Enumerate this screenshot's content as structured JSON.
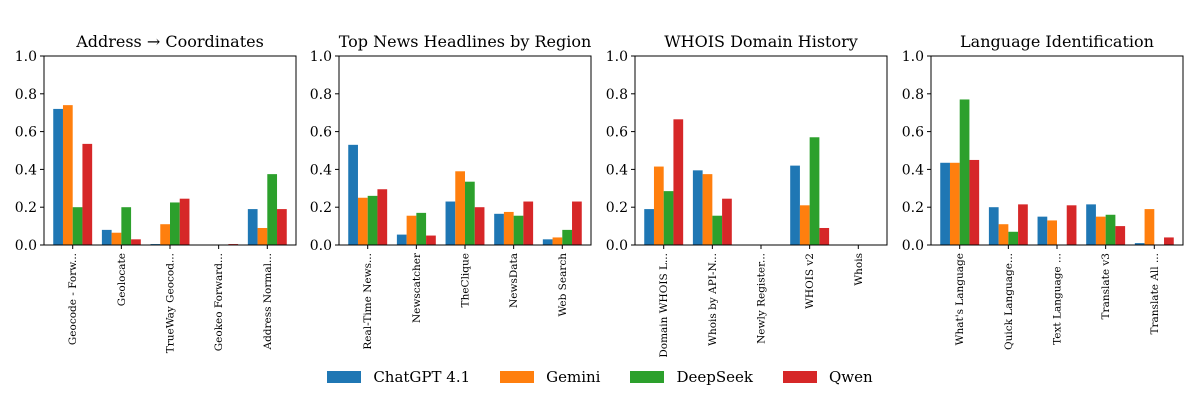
{
  "legend": {
    "items": [
      {
        "name": "ChatGPT 4.1",
        "color": "#1f77b4"
      },
      {
        "name": "Gemini",
        "color": "#ff7f0e"
      },
      {
        "name": "DeepSeek",
        "color": "#2ca02c"
      },
      {
        "name": "Qwen",
        "color": "#d62728"
      }
    ]
  },
  "chart_data": [
    {
      "type": "bar",
      "title": "Address → Coordinates",
      "categories": [
        "Geocode - Forw...",
        "Geolocate",
        "TrueWay Geocod...",
        "Geokeo Forward...",
        "Address Normal..."
      ],
      "ylim": [
        0,
        1.0
      ],
      "yticks": [
        "0.0",
        "0.2",
        "0.4",
        "0.6",
        "0.8",
        "1.0"
      ],
      "series": [
        {
          "name": "ChatGPT 4.1",
          "values": [
            0.72,
            0.08,
            0.005,
            0.0,
            0.19
          ]
        },
        {
          "name": "Gemini",
          "values": [
            0.74,
            0.065,
            0.11,
            0.0,
            0.09
          ]
        },
        {
          "name": "DeepSeek",
          "values": [
            0.2,
            0.2,
            0.225,
            0.0,
            0.375
          ]
        },
        {
          "name": "Qwen",
          "values": [
            0.535,
            0.03,
            0.245,
            0.005,
            0.19
          ]
        }
      ]
    },
    {
      "type": "bar",
      "title": "Top News Headlines by Region",
      "categories": [
        "Real-Time News...",
        "Newscatcher",
        "TheClique",
        "NewsData",
        "Web Search"
      ],
      "ylim": [
        0,
        1.0
      ],
      "yticks": [
        "0.0",
        "0.2",
        "0.4",
        "0.6",
        "0.8",
        "1.0"
      ],
      "series": [
        {
          "name": "ChatGPT 4.1",
          "values": [
            0.53,
            0.055,
            0.23,
            0.165,
            0.03
          ]
        },
        {
          "name": "Gemini",
          "values": [
            0.25,
            0.155,
            0.39,
            0.175,
            0.04
          ]
        },
        {
          "name": "DeepSeek",
          "values": [
            0.26,
            0.17,
            0.335,
            0.155,
            0.08
          ]
        },
        {
          "name": "Qwen",
          "values": [
            0.295,
            0.05,
            0.2,
            0.23,
            0.23
          ]
        }
      ]
    },
    {
      "type": "bar",
      "title": "WHOIS Domain History",
      "categories": [
        "Domain WHOIS L...",
        "Whois by API-N...",
        "Newly Register...",
        "WHOIS v2",
        "Whois"
      ],
      "ylim": [
        0,
        1.0
      ],
      "yticks": [
        "0.0",
        "0.2",
        "0.4",
        "0.6",
        "0.8",
        "1.0"
      ],
      "series": [
        {
          "name": "ChatGPT 4.1",
          "values": [
            0.19,
            0.395,
            0.0,
            0.42,
            0.0
          ]
        },
        {
          "name": "Gemini",
          "values": [
            0.415,
            0.375,
            0.0,
            0.21,
            0.0
          ]
        },
        {
          "name": "DeepSeek",
          "values": [
            0.285,
            0.155,
            0.0,
            0.57,
            0.0
          ]
        },
        {
          "name": "Qwen",
          "values": [
            0.665,
            0.245,
            0.0,
            0.09,
            0.0
          ]
        }
      ]
    },
    {
      "type": "bar",
      "title": "Language Identification",
      "categories": [
        "What's Language",
        "Quick Language...",
        "Text Language ...",
        "Translate v3",
        "Translate All ..."
      ],
      "ylim": [
        0,
        1.0
      ],
      "yticks": [
        "0.0",
        "0.2",
        "0.4",
        "0.6",
        "0.8",
        "1.0"
      ],
      "series": [
        {
          "name": "ChatGPT 4.1",
          "values": [
            0.435,
            0.2,
            0.15,
            0.215,
            0.01
          ]
        },
        {
          "name": "Gemini",
          "values": [
            0.435,
            0.11,
            0.13,
            0.15,
            0.19
          ]
        },
        {
          "name": "DeepSeek",
          "values": [
            0.77,
            0.07,
            0.0,
            0.16,
            0.0
          ]
        },
        {
          "name": "Qwen",
          "values": [
            0.45,
            0.215,
            0.21,
            0.1,
            0.04
          ]
        }
      ]
    }
  ]
}
